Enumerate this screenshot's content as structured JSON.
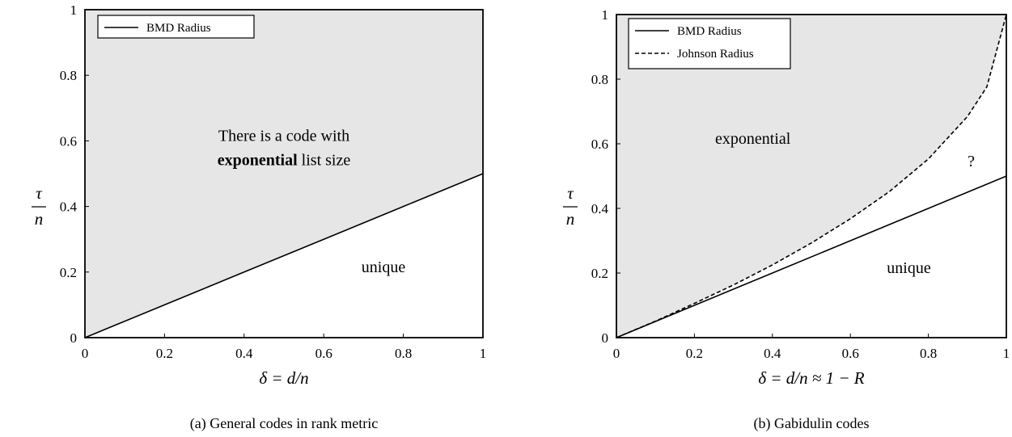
{
  "chart_data": [
    {
      "type": "area",
      "panel": "a",
      "caption": "(a) General codes in rank metric",
      "xlabel": "δ = d/n",
      "ylabel_num": "τ",
      "ylabel_den": "n",
      "xlim": [
        0,
        1
      ],
      "ylim": [
        0,
        1
      ],
      "x_ticks": [
        "0",
        "0.2",
        "0.4",
        "0.6",
        "0.8",
        "1"
      ],
      "y_ticks": [
        "0",
        "0.2",
        "0.4",
        "0.6",
        "0.8",
        "1"
      ],
      "series": [
        {
          "name": "BMD Radius",
          "style": "solid",
          "x": [
            0,
            0.2,
            0.4,
            0.6,
            0.8,
            1
          ],
          "y": [
            0,
            0.1,
            0.2,
            0.3,
            0.4,
            0.5
          ]
        }
      ],
      "shaded_region": "above BMD Radius",
      "legend_position": "top-left",
      "annotations": [
        {
          "lines": [
            "There is a code with",
            "exponential list size"
          ],
          "bold_word": "exponential",
          "x": 0.5,
          "y": 0.6
        },
        {
          "lines": [
            "unique"
          ],
          "x": 0.75,
          "y": 0.2
        }
      ]
    },
    {
      "type": "area",
      "panel": "b",
      "caption": "(b) Gabidulin codes",
      "xlabel": "δ = d/n ≈ 1 − R",
      "ylabel_num": "τ",
      "ylabel_den": "n",
      "xlim": [
        0,
        1
      ],
      "ylim": [
        0,
        1
      ],
      "x_ticks": [
        "0",
        "0.2",
        "0.4",
        "0.6",
        "0.8",
        "1"
      ],
      "y_ticks": [
        "0",
        "0.2",
        "0.4",
        "0.6",
        "0.8",
        "1"
      ],
      "series": [
        {
          "name": "BMD Radius",
          "style": "solid",
          "x": [
            0,
            0.2,
            0.4,
            0.6,
            0.8,
            1
          ],
          "y": [
            0,
            0.1,
            0.2,
            0.3,
            0.4,
            0.5
          ]
        },
        {
          "name": "Johnson Radius",
          "style": "dashed",
          "x": [
            0,
            0.1,
            0.2,
            0.3,
            0.4,
            0.5,
            0.6,
            0.7,
            0.8,
            0.9,
            0.95,
            1
          ],
          "y": [
            0,
            0.051,
            0.106,
            0.163,
            0.225,
            0.293,
            0.368,
            0.452,
            0.553,
            0.684,
            0.776,
            1
          ]
        }
      ],
      "shaded_region": "above Johnson Radius",
      "legend_position": "top-left",
      "annotations": [
        {
          "lines": [
            "exponential"
          ],
          "x": 0.35,
          "y": 0.6
        },
        {
          "lines": [
            "?"
          ],
          "x": 0.91,
          "y": 0.53
        },
        {
          "lines": [
            "unique"
          ],
          "x": 0.75,
          "y": 0.2
        }
      ]
    }
  ]
}
